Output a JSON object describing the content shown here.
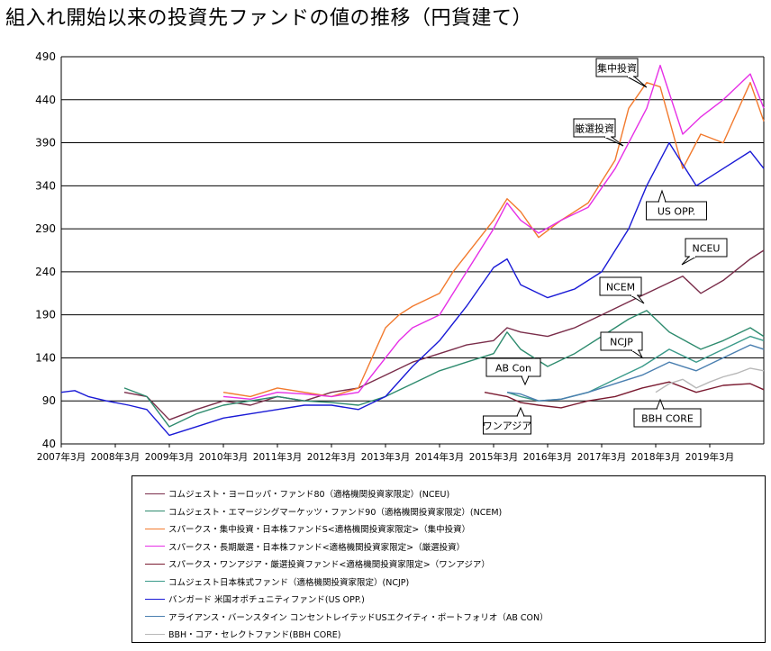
{
  "title": "組入れ開始以来の投資先ファンドの値の推移（円貨建て）",
  "colors": {
    "NCEU": "#7a2d4a",
    "NCEM": "#2e8b6e",
    "SHUCHU": "#f27a2e",
    "GENSEN": "#e62fe6",
    "ONEASIA": "#7a1a30",
    "NCJP": "#3a9a8a",
    "USOPP": "#1a1ad6",
    "ABCON": "#4a7fb0",
    "BBH": "#b8b8b8"
  },
  "callouts": [
    "集中投資",
    "厳選投資",
    "US OPP.",
    "NCEU",
    "NCEM",
    "NCJP",
    "AB Con",
    "ワンアジア",
    "BBH CORE"
  ],
  "chart_data": {
    "type": "line",
    "title": "組入れ開始以来の投資先ファンドの値の推移（円貨建て）",
    "x_ticks": [
      "2007年3月",
      "2008年3月",
      "2009年3月",
      "2010年3月",
      "2011年3月",
      "2012年3月",
      "2013年3月",
      "2014年3月",
      "2015年3月",
      "2016年3月",
      "2017年3月",
      "2018年3月",
      "2019年3月"
    ],
    "y_ticks": [
      40,
      90,
      140,
      190,
      240,
      290,
      340,
      390,
      440,
      490
    ],
    "ylim": [
      40,
      490
    ],
    "xlim": [
      "2007-03",
      "2020-03"
    ],
    "grid": "horizontal",
    "legend_position": "bottom",
    "series": [
      {
        "key": "NCEU",
        "name": "コムジェスト・ヨーロッパ・ファンド80（適格機関投資家限定）(NCEU)",
        "x": [
          "2008-05",
          "2008-10",
          "2009-03",
          "2009-09",
          "2010-03",
          "2010-09",
          "2011-03",
          "2011-09",
          "2012-03",
          "2012-09",
          "2013-03",
          "2013-09",
          "2014-03",
          "2014-09",
          "2015-03",
          "2015-06",
          "2015-09",
          "2016-03",
          "2016-09",
          "2017-03",
          "2017-09",
          "2018-03",
          "2018-09",
          "2019-01",
          "2019-06",
          "2019-12",
          "2020-03"
        ],
        "y": [
          100,
          95,
          68,
          80,
          90,
          85,
          95,
          90,
          100,
          105,
          120,
          135,
          145,
          155,
          160,
          175,
          170,
          165,
          175,
          190,
          205,
          220,
          235,
          215,
          230,
          255,
          265
        ]
      },
      {
        "key": "NCEM",
        "name": "コムジェスト・エマージングマーケッツ・ファンド90（適格機関投資家限定）(NCEM)",
        "x": [
          "2008-05",
          "2008-10",
          "2009-03",
          "2009-09",
          "2010-03",
          "2010-09",
          "2011-03",
          "2011-09",
          "2012-03",
          "2012-09",
          "2013-03",
          "2013-09",
          "2014-03",
          "2014-09",
          "2015-03",
          "2015-06",
          "2015-09",
          "2016-03",
          "2016-09",
          "2017-03",
          "2017-09",
          "2018-01",
          "2018-06",
          "2019-01",
          "2019-06",
          "2019-12",
          "2020-03"
        ],
        "y": [
          105,
          95,
          60,
          75,
          85,
          90,
          95,
          90,
          88,
          85,
          95,
          110,
          125,
          135,
          145,
          170,
          150,
          130,
          145,
          165,
          185,
          195,
          170,
          150,
          160,
          175,
          165
        ]
      },
      {
        "key": "SHUCHU",
        "name": "スパークス・集中投資・日本株ファンドS<適格機関投資家限定>（集中投資）",
        "x": [
          "2010-03",
          "2010-09",
          "2011-03",
          "2011-09",
          "2012-03",
          "2012-09",
          "2013-03",
          "2013-06",
          "2013-09",
          "2014-03",
          "2014-06",
          "2014-09",
          "2015-03",
          "2015-06",
          "2015-09",
          "2016-01",
          "2016-06",
          "2016-12",
          "2017-06",
          "2017-09",
          "2018-01",
          "2018-04",
          "2018-09",
          "2019-01",
          "2019-06",
          "2019-12",
          "2020-03"
        ],
        "y": [
          100,
          95,
          105,
          100,
          95,
          105,
          175,
          190,
          200,
          215,
          240,
          260,
          300,
          325,
          310,
          280,
          300,
          320,
          370,
          430,
          460,
          455,
          360,
          400,
          390,
          460,
          415
        ]
      },
      {
        "key": "GENSEN",
        "name": "スパークス・長期厳選・日本株ファンド<適格機関投資家限定>（厳選投資）",
        "x": [
          "2010-03",
          "2010-09",
          "2011-03",
          "2011-09",
          "2012-03",
          "2012-09",
          "2013-03",
          "2013-06",
          "2013-09",
          "2014-03",
          "2014-06",
          "2014-09",
          "2015-03",
          "2015-06",
          "2015-09",
          "2016-01",
          "2016-06",
          "2016-12",
          "2017-06",
          "2017-09",
          "2018-01",
          "2018-04",
          "2018-09",
          "2019-01",
          "2019-06",
          "2019-12",
          "2020-03"
        ],
        "y": [
          95,
          92,
          100,
          98,
          95,
          100,
          140,
          160,
          175,
          190,
          215,
          240,
          290,
          320,
          300,
          285,
          300,
          315,
          360,
          390,
          430,
          480,
          400,
          420,
          440,
          470,
          430
        ]
      },
      {
        "key": "ONEASIA",
        "name": "スパークス・ワンアジア・厳選投資ファンド<適格機関投資家限定>（ワンアジア）",
        "x": [
          "2015-01",
          "2015-06",
          "2015-09",
          "2016-01",
          "2016-06",
          "2016-12",
          "2017-06",
          "2017-12",
          "2018-06",
          "2018-12",
          "2019-06",
          "2019-12",
          "2020-03"
        ],
        "y": [
          100,
          95,
          88,
          85,
          82,
          90,
          95,
          105,
          112,
          100,
          108,
          110,
          103
        ]
      },
      {
        "key": "NCJP",
        "name": "コムジェスト日本株式ファンド（適格機関投資家限定）(NCJP)",
        "x": [
          "2015-06",
          "2015-09",
          "2016-01",
          "2016-06",
          "2016-12",
          "2017-06",
          "2017-12",
          "2018-06",
          "2018-12",
          "2019-06",
          "2019-12",
          "2020-03"
        ],
        "y": [
          100,
          95,
          90,
          92,
          100,
          115,
          130,
          150,
          135,
          150,
          165,
          160
        ]
      },
      {
        "key": "USOPP",
        "name": "バンガード 米国オポチュニティファンド(US OPP.)",
        "x": [
          "2007-03",
          "2007-06",
          "2007-09",
          "2008-01",
          "2008-06",
          "2008-10",
          "2009-03",
          "2009-09",
          "2010-03",
          "2010-09",
          "2011-03",
          "2011-09",
          "2012-03",
          "2012-09",
          "2013-03",
          "2013-09",
          "2014-03",
          "2014-09",
          "2015-03",
          "2015-06",
          "2015-09",
          "2016-03",
          "2016-09",
          "2017-03",
          "2017-09",
          "2018-01",
          "2018-06",
          "2018-12",
          "2019-06",
          "2019-12",
          "2020-03"
        ],
        "y": [
          100,
          102,
          95,
          90,
          85,
          80,
          50,
          60,
          70,
          75,
          80,
          85,
          85,
          80,
          95,
          130,
          160,
          200,
          245,
          255,
          225,
          210,
          220,
          240,
          290,
          340,
          390,
          340,
          360,
          380,
          360
        ]
      },
      {
        "key": "ABCON",
        "name": "アライアンス・バーンスタイン コンセントレイテッドUSエクイティ・ポートフォリオ（AB CON）",
        "x": [
          "2015-06",
          "2015-09",
          "2016-01",
          "2016-06",
          "2016-12",
          "2017-06",
          "2017-12",
          "2018-06",
          "2018-12",
          "2019-06",
          "2019-12",
          "2020-03"
        ],
        "y": [
          100,
          98,
          90,
          92,
          100,
          110,
          120,
          135,
          125,
          140,
          155,
          150
        ]
      },
      {
        "key": "BBH",
        "name": "BBH・コア・セレクトファンド(BBH CORE)",
        "x": [
          "2018-03",
          "2018-06",
          "2018-09",
          "2018-12",
          "2019-03",
          "2019-06",
          "2019-09",
          "2019-12",
          "2020-03"
        ],
        "y": [
          100,
          110,
          115,
          105,
          112,
          118,
          122,
          128,
          125
        ]
      }
    ]
  }
}
